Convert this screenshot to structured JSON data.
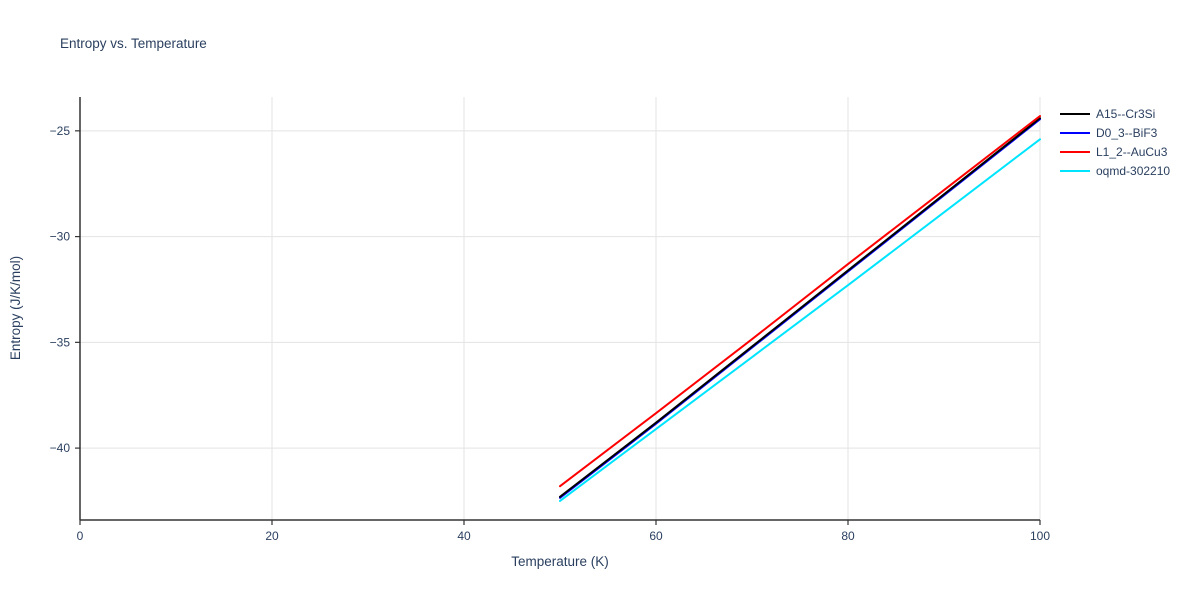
{
  "chart_data": {
    "type": "line",
    "title": "Entropy vs. Temperature",
    "xlabel": "Temperature (K)",
    "ylabel": "Entropy (J/K/mol)",
    "xlim": [
      0,
      100
    ],
    "ylim": [
      -43.4,
      -23.4
    ],
    "x_ticks": [
      0,
      20,
      40,
      60,
      80,
      100
    ],
    "y_ticks": [
      -40,
      -35,
      -30,
      -25
    ],
    "grid": true,
    "legend_position": "top-right",
    "colors": {
      "grid": "#e3e3e3",
      "spine": "#333333",
      "text": "#2a3f5f"
    },
    "series": [
      {
        "name": "A15--Cr3Si",
        "color": "#000000",
        "x": [
          50,
          60,
          70,
          80,
          90,
          100
        ],
        "y": [
          -42.3,
          -38.8,
          -35.2,
          -31.6,
          -28.0,
          -24.4
        ]
      },
      {
        "name": "D0_3--BiF3",
        "color": "#0000ff",
        "x": [
          50,
          60,
          70,
          80,
          90,
          100
        ],
        "y": [
          -42.35,
          -38.85,
          -35.25,
          -31.65,
          -28.05,
          -24.45
        ]
      },
      {
        "name": "L1_2--AuCu3",
        "color": "#ff0000",
        "x": [
          50,
          60,
          70,
          80,
          90,
          100
        ],
        "y": [
          -41.8,
          -38.35,
          -34.85,
          -31.3,
          -27.8,
          -24.3
        ]
      },
      {
        "name": "oqmd-302210",
        "color": "#00e5ff",
        "x": [
          50,
          60,
          70,
          80,
          90,
          100
        ],
        "y": [
          -42.5,
          -39.1,
          -35.7,
          -32.3,
          -28.85,
          -25.4
        ]
      }
    ]
  }
}
